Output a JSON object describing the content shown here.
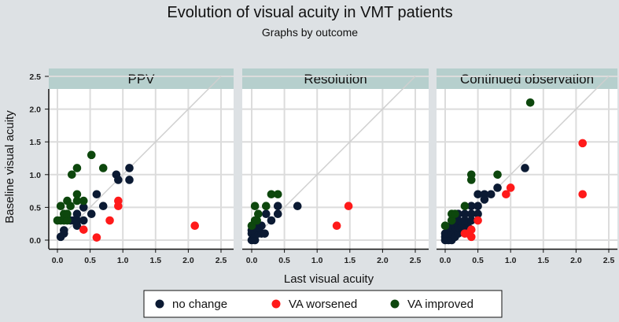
{
  "chart_data": {
    "type": "scatter",
    "title": "Evolution of visual acuity in VMT patients",
    "subtitle": "Graphs by outcome",
    "xlabel": "Last visual acuity",
    "ylabel": "Baseline visual acuity",
    "xlim": [
      0,
      2.5
    ],
    "ylim": [
      0,
      2.5
    ],
    "xticks": [
      "0.0",
      "0.5",
      "1.0",
      "1.5",
      "2.0",
      "2.5"
    ],
    "yticks": [
      "0.0",
      "0.5",
      "1.0",
      "1.5",
      "2.0",
      "2.5"
    ],
    "grid": true,
    "reference_line": "y = x",
    "legend": {
      "placement": "bottom",
      "entries": [
        {
          "label": "no change",
          "color": "#0b1a33"
        },
        {
          "label": "VA worsened",
          "color": "#ff1a1a"
        },
        {
          "label": "VA improved",
          "color": "#0d470d"
        }
      ]
    },
    "panels": [
      {
        "label": "PPV",
        "series": [
          {
            "name": "no change",
            "points": [
              [
                0.05,
                0.05
              ],
              [
                0.1,
                0.1
              ],
              [
                0.1,
                0.15
              ],
              [
                0.2,
                0.3
              ],
              [
                0.25,
                0.3
              ],
              [
                0.3,
                0.3
              ],
              [
                0.3,
                0.4
              ],
              [
                0.3,
                0.22
              ],
              [
                0.4,
                0.3
              ],
              [
                0.4,
                0.5
              ],
              [
                0.52,
                0.4
              ],
              [
                0.6,
                0.7
              ],
              [
                0.7,
                0.52
              ],
              [
                0.9,
                1.0
              ],
              [
                0.93,
                0.92
              ],
              [
                1.1,
                1.1
              ],
              [
                1.1,
                0.92
              ]
            ]
          },
          {
            "name": "VA worsened",
            "points": [
              [
                0.4,
                0.16
              ],
              [
                0.6,
                0.04
              ],
              [
                0.8,
                0.3
              ],
              [
                0.93,
                0.6
              ],
              [
                0.93,
                0.52
              ],
              [
                2.1,
                0.22
              ]
            ]
          },
          {
            "name": "VA improved",
            "points": [
              [
                0.0,
                0.3
              ],
              [
                0.05,
                0.3
              ],
              [
                0.05,
                0.52
              ],
              [
                0.1,
                0.4
              ],
              [
                0.1,
                0.3
              ],
              [
                0.15,
                0.3
              ],
              [
                0.15,
                0.4
              ],
              [
                0.15,
                0.6
              ],
              [
                0.2,
                0.52
              ],
              [
                0.22,
                1.0
              ],
              [
                0.3,
                1.1
              ],
              [
                0.3,
                0.7
              ],
              [
                0.3,
                0.6
              ],
              [
                0.4,
                0.6
              ],
              [
                0.52,
                1.3
              ],
              [
                0.7,
                1.1
              ]
            ]
          }
        ]
      },
      {
        "label": "Resolution",
        "series": [
          {
            "name": "no change",
            "points": [
              [
                0.0,
                0.0
              ],
              [
                0.05,
                0.0
              ],
              [
                0.0,
                0.1
              ],
              [
                0.05,
                0.1
              ],
              [
                0.1,
                0.1
              ],
              [
                0.15,
                0.1
              ],
              [
                0.2,
                0.1
              ],
              [
                0.0,
                0.15
              ],
              [
                0.05,
                0.2
              ],
              [
                0.1,
                0.2
              ],
              [
                0.15,
                0.22
              ],
              [
                0.22,
                0.4
              ],
              [
                0.3,
                0.3
              ],
              [
                0.4,
                0.4
              ],
              [
                0.4,
                0.52
              ],
              [
                0.7,
                0.52
              ]
            ]
          },
          {
            "name": "VA worsened",
            "points": [
              [
                1.3,
                0.22
              ],
              [
                1.48,
                0.52
              ]
            ]
          },
          {
            "name": "VA improved",
            "points": [
              [
                0.0,
                0.22
              ],
              [
                0.05,
                0.3
              ],
              [
                0.08,
                0.3
              ],
              [
                0.1,
                0.4
              ],
              [
                0.05,
                0.52
              ],
              [
                0.22,
                0.52
              ],
              [
                0.3,
                0.7
              ],
              [
                0.4,
                0.7
              ]
            ]
          }
        ]
      },
      {
        "label": "Continued observation",
        "series": [
          {
            "name": "no change",
            "points": [
              [
                0.0,
                0.0
              ],
              [
                0.05,
                0.0
              ],
              [
                0.1,
                0.0
              ],
              [
                0.0,
                0.05
              ],
              [
                0.0,
                0.1
              ],
              [
                0.05,
                0.1
              ],
              [
                0.1,
                0.1
              ],
              [
                0.15,
                0.05
              ],
              [
                0.2,
                0.1
              ],
              [
                0.05,
                0.2
              ],
              [
                0.1,
                0.2
              ],
              [
                0.15,
                0.2
              ],
              [
                0.2,
                0.2
              ],
              [
                0.25,
                0.2
              ],
              [
                0.3,
                0.2
              ],
              [
                0.35,
                0.2
              ],
              [
                0.1,
                0.3
              ],
              [
                0.2,
                0.3
              ],
              [
                0.3,
                0.3
              ],
              [
                0.4,
                0.3
              ],
              [
                0.2,
                0.4
              ],
              [
                0.3,
                0.4
              ],
              [
                0.4,
                0.4
              ],
              [
                0.4,
                0.52
              ],
              [
                0.5,
                0.4
              ],
              [
                0.5,
                0.52
              ],
              [
                0.5,
                0.7
              ],
              [
                0.6,
                0.7
              ],
              [
                0.6,
                0.62
              ],
              [
                0.7,
                0.7
              ],
              [
                0.8,
                0.8
              ],
              [
                1.22,
                1.1
              ]
            ]
          },
          {
            "name": "VA worsened",
            "points": [
              [
                0.3,
                0.1
              ],
              [
                0.35,
                0.1
              ],
              [
                0.4,
                0.16
              ],
              [
                0.4,
                0.05
              ],
              [
                0.5,
                0.3
              ],
              [
                0.93,
                0.7
              ],
              [
                1.0,
                0.8
              ],
              [
                2.1,
                1.48
              ],
              [
                2.1,
                0.7
              ]
            ]
          },
          {
            "name": "VA improved",
            "points": [
              [
                0.0,
                0.22
              ],
              [
                0.1,
                0.3
              ],
              [
                0.1,
                0.4
              ],
              [
                0.15,
                0.4
              ],
              [
                0.3,
                0.52
              ],
              [
                0.4,
                0.92
              ],
              [
                0.4,
                1.0
              ],
              [
                0.8,
                1.0
              ],
              [
                1.3,
                2.1
              ]
            ]
          }
        ]
      }
    ]
  }
}
